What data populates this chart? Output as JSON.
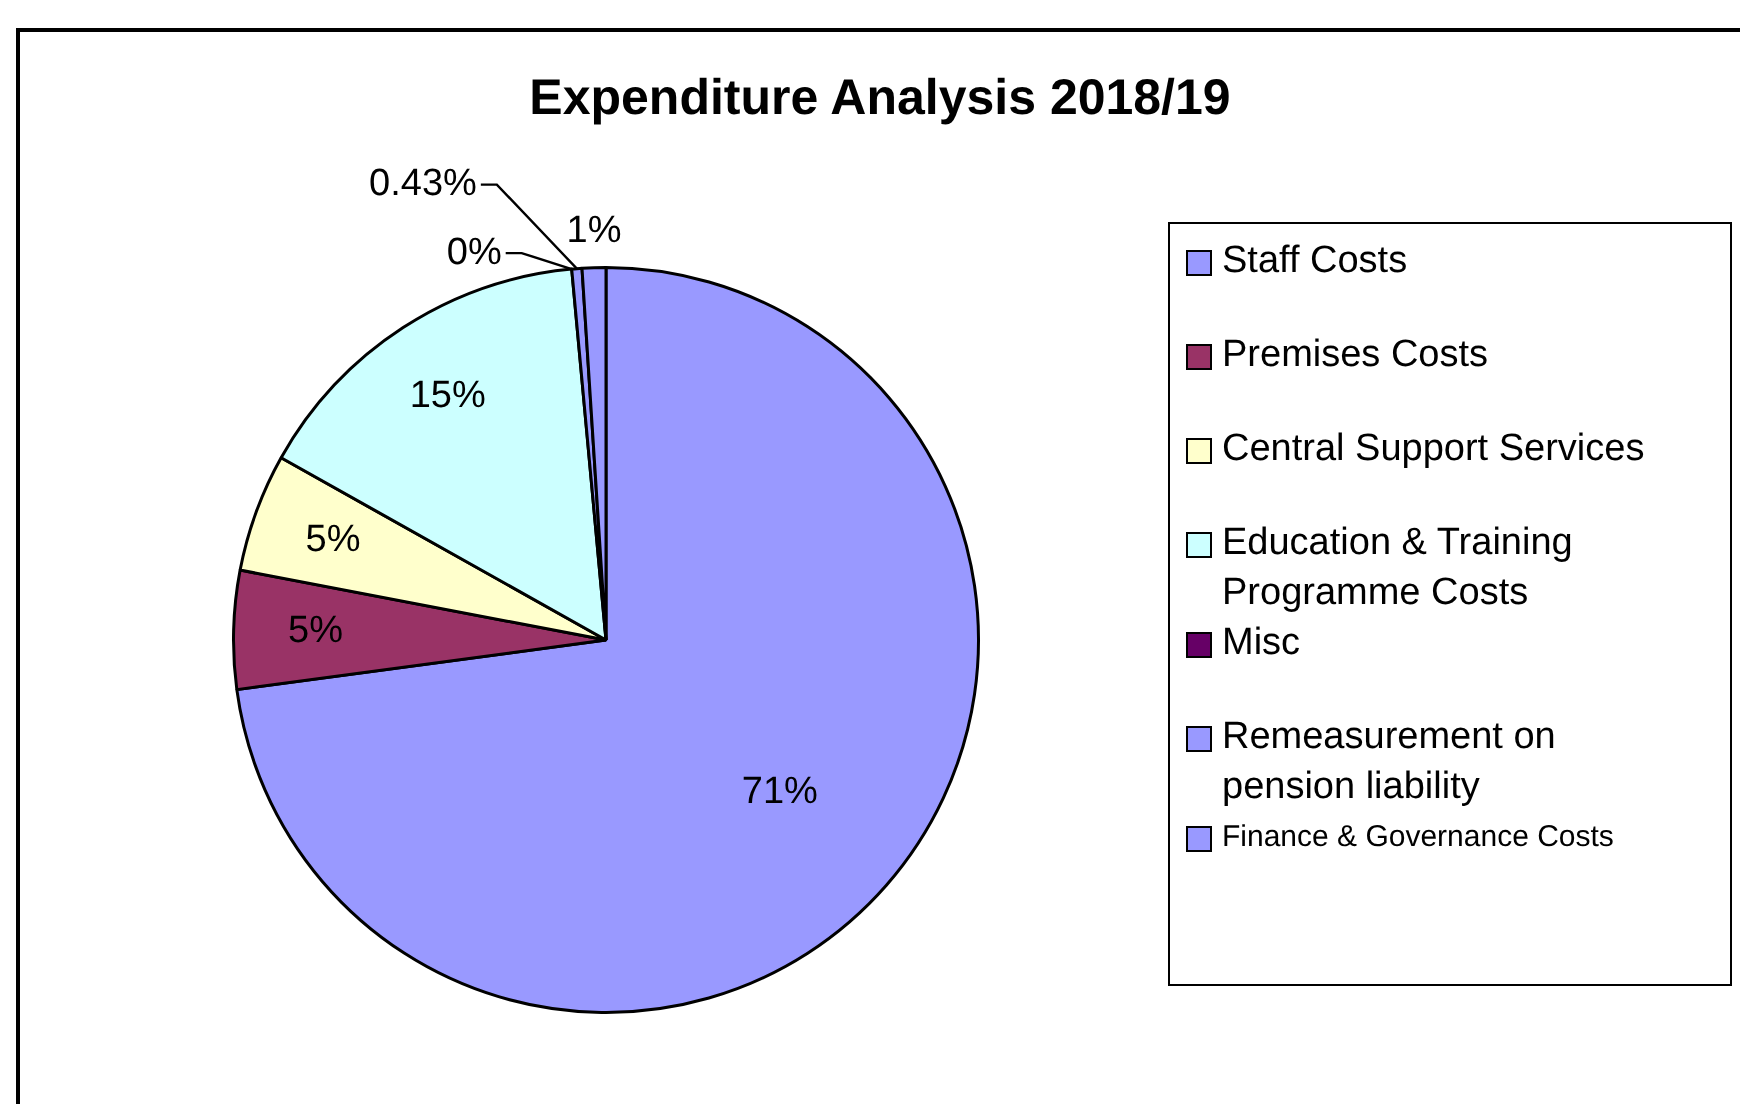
{
  "chart_data": {
    "type": "pie",
    "title": "Expenditure Analysis 2018/19",
    "categories": [
      "Staff Costs",
      "Premises Costs",
      "Central Support Services",
      "Education & Training Programme Costs",
      "Misc",
      "Remeasurement on pension liability",
      "Finance & Governance Costs"
    ],
    "values": [
      71,
      5,
      5,
      15,
      0,
      0.43,
      1
    ],
    "value_labels": [
      "71%",
      "5%",
      "5%",
      "15%",
      "0%",
      "0.43%",
      "1%"
    ],
    "colors": [
      "#9999ff",
      "#993366",
      "#ffffcc",
      "#ccffff",
      "#660066",
      "#9999ff",
      "#9999ff"
    ],
    "legend": "right"
  }
}
